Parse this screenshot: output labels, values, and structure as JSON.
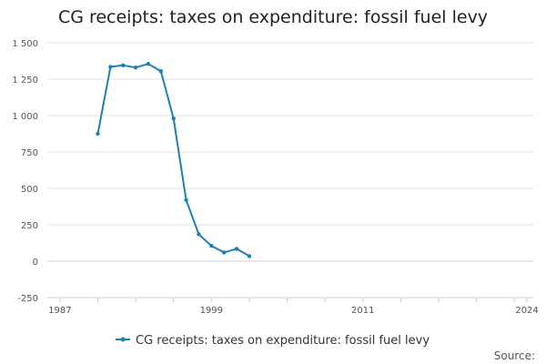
{
  "title": "CG receipts: taxes on expenditure: fossil fuel levy",
  "source_label": "Source:",
  "colors": {
    "series": "#1f7fb6",
    "grid": "#e6e6e6",
    "zero_line": "#cccccc",
    "axis": "#cccccc"
  },
  "chart_data": {
    "type": "line",
    "title": "CG receipts: taxes on expenditure: fossil fuel levy",
    "xlabel": "",
    "ylabel": "",
    "xlim": [
      1986,
      2024.5
    ],
    "ylim": [
      -250,
      1500
    ],
    "x_ticks": [
      1987,
      1999,
      2011,
      2024
    ],
    "x_tick_labels": [
      "1987",
      "1999",
      "2011",
      "2024"
    ],
    "y_ticks": [
      -250,
      0,
      250,
      500,
      750,
      1000,
      1250,
      1500
    ],
    "y_tick_labels": [
      "-250",
      "0",
      "250",
      "500",
      "750",
      "1 000",
      "1 250",
      "1 500"
    ],
    "grid": true,
    "legend_position": "bottom",
    "series": [
      {
        "name": "CG receipts: taxes on expenditure: fossil fuel levy",
        "x": [
          1990,
          1991,
          1992,
          1993,
          1994,
          1995,
          1996,
          1997,
          1998,
          1999,
          2000,
          2001,
          2002
        ],
        "y": [
          875,
          1335,
          1345,
          1330,
          1355,
          1305,
          980,
          420,
          185,
          105,
          60,
          85,
          35
        ]
      }
    ]
  }
}
